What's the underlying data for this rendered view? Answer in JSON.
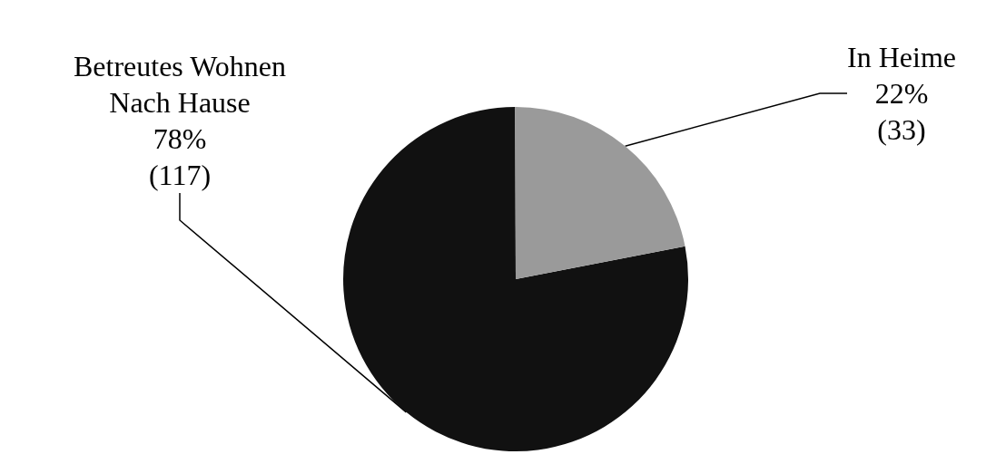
{
  "chart_data": {
    "type": "pie",
    "categories": [
      "Betreutes Wohnen\nNach Hause",
      "In Heime"
    ],
    "values": [
      78,
      22
    ],
    "value_labels": [
      "78%\n(117)",
      "22%\n(33)"
    ],
    "colors": [
      "#111111",
      "#9a9a9a"
    ]
  }
}
